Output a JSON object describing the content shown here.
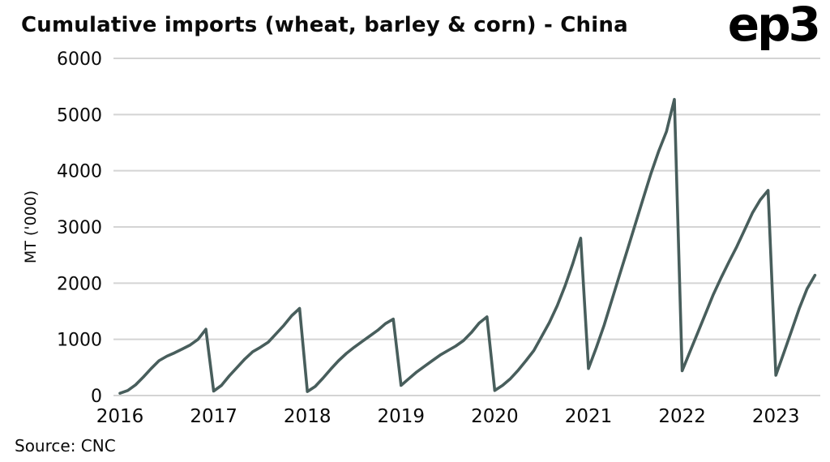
{
  "header": {
    "title": "Cumulative imports (wheat, barley & corn) - China",
    "logo_text": "ep3"
  },
  "footer": {
    "source": "Source: CNC"
  },
  "chart_data": {
    "type": "line",
    "title": "Cumulative imports (wheat, barley & corn) - China",
    "xlabel": "",
    "ylabel": "MT ('000)",
    "ylim": [
      0,
      6000
    ],
    "ytick_step": 1000,
    "x_years": [
      2016,
      2017,
      2018,
      2019,
      2020,
      2021,
      2022,
      2023
    ],
    "grid": true,
    "legend": "none",
    "line_color": "#485e5c",
    "grid_color": "#d4d4d4",
    "series": [
      {
        "name": "Cumulative imports (wheat, barley & corn)",
        "color": "#485e5c",
        "points": [
          [
            2016.0,
            40
          ],
          [
            2016.083,
            90
          ],
          [
            2016.167,
            190
          ],
          [
            2016.25,
            330
          ],
          [
            2016.333,
            480
          ],
          [
            2016.417,
            620
          ],
          [
            2016.5,
            700
          ],
          [
            2016.583,
            760
          ],
          [
            2016.667,
            830
          ],
          [
            2016.75,
            900
          ],
          [
            2016.833,
            1000
          ],
          [
            2016.917,
            1180
          ],
          [
            2017.0,
            80
          ],
          [
            2017.083,
            180
          ],
          [
            2017.167,
            350
          ],
          [
            2017.25,
            500
          ],
          [
            2017.333,
            650
          ],
          [
            2017.417,
            780
          ],
          [
            2017.5,
            860
          ],
          [
            2017.583,
            950
          ],
          [
            2017.667,
            1100
          ],
          [
            2017.75,
            1250
          ],
          [
            2017.833,
            1420
          ],
          [
            2017.917,
            1550
          ],
          [
            2018.0,
            70
          ],
          [
            2018.083,
            160
          ],
          [
            2018.167,
            310
          ],
          [
            2018.25,
            470
          ],
          [
            2018.333,
            620
          ],
          [
            2018.417,
            750
          ],
          [
            2018.5,
            860
          ],
          [
            2018.583,
            960
          ],
          [
            2018.667,
            1060
          ],
          [
            2018.75,
            1160
          ],
          [
            2018.833,
            1280
          ],
          [
            2018.917,
            1360
          ],
          [
            2019.0,
            180
          ],
          [
            2019.083,
            300
          ],
          [
            2019.167,
            420
          ],
          [
            2019.25,
            520
          ],
          [
            2019.333,
            620
          ],
          [
            2019.417,
            720
          ],
          [
            2019.5,
            800
          ],
          [
            2019.583,
            880
          ],
          [
            2019.667,
            980
          ],
          [
            2019.75,
            1120
          ],
          [
            2019.833,
            1290
          ],
          [
            2019.917,
            1400
          ],
          [
            2020.0,
            90
          ],
          [
            2020.083,
            180
          ],
          [
            2020.167,
            300
          ],
          [
            2020.25,
            450
          ],
          [
            2020.333,
            620
          ],
          [
            2020.417,
            800
          ],
          [
            2020.5,
            1050
          ],
          [
            2020.583,
            1300
          ],
          [
            2020.667,
            1600
          ],
          [
            2020.75,
            1950
          ],
          [
            2020.833,
            2350
          ],
          [
            2020.917,
            2800
          ],
          [
            2021.0,
            480
          ],
          [
            2021.083,
            850
          ],
          [
            2021.167,
            1250
          ],
          [
            2021.25,
            1700
          ],
          [
            2021.333,
            2150
          ],
          [
            2021.417,
            2600
          ],
          [
            2021.5,
            3050
          ],
          [
            2021.583,
            3500
          ],
          [
            2021.667,
            3950
          ],
          [
            2021.75,
            4350
          ],
          [
            2021.833,
            4700
          ],
          [
            2021.917,
            5270
          ],
          [
            2022.0,
            440
          ],
          [
            2022.083,
            780
          ],
          [
            2022.167,
            1120
          ],
          [
            2022.25,
            1460
          ],
          [
            2022.333,
            1800
          ],
          [
            2022.417,
            2100
          ],
          [
            2022.5,
            2380
          ],
          [
            2022.583,
            2650
          ],
          [
            2022.667,
            2950
          ],
          [
            2022.75,
            3250
          ],
          [
            2022.833,
            3480
          ],
          [
            2022.917,
            3650
          ],
          [
            2023.0,
            360
          ],
          [
            2023.083,
            750
          ],
          [
            2023.167,
            1150
          ],
          [
            2023.25,
            1550
          ],
          [
            2023.333,
            1900
          ],
          [
            2023.417,
            2140
          ]
        ]
      }
    ]
  }
}
